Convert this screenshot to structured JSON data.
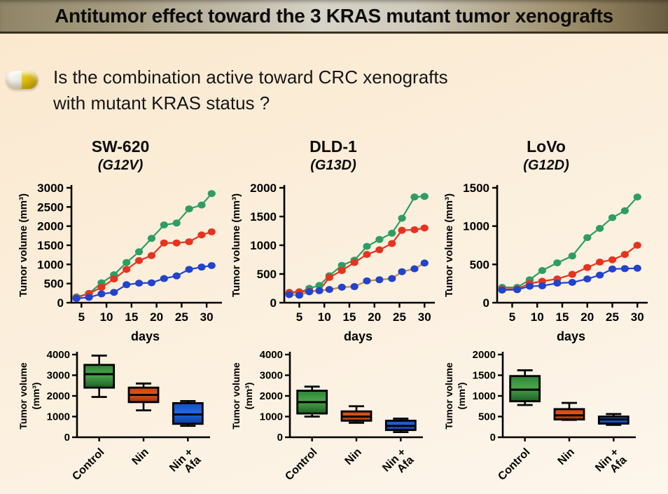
{
  "title": "Antitumor effect toward the 3 KRAS mutant tumor xenografts",
  "question": {
    "line1": "Is the combination active toward CRC xenografts",
    "line2": "with mutant KRAS status ?"
  },
  "headers": [
    {
      "cell_line": "SW-620",
      "mutation": "(G12V)"
    },
    {
      "cell_line": "DLD-1",
      "mutation": "(G13D)"
    },
    {
      "cell_line": "LoVo",
      "mutation": "(G12D)"
    }
  ],
  "colors": {
    "line_control": "#2e9d64",
    "line_nin": "#e63320",
    "line_nin_afa": "#2143cd",
    "line_nin_afa_connector_dld1": "#c98836",
    "box_green": [
      "#2e8436",
      "#4aa54b",
      "#1d6124"
    ],
    "box_orange": [
      "#c2440e",
      "#e0561c",
      "#96330a"
    ],
    "box_blue": [
      "#1150c4",
      "#2268e0",
      "#0a3c9e"
    ]
  },
  "chart_data": [
    {
      "type": "line",
      "cell_line": "SW-620",
      "ylabel": "Tumor volume (mm³)",
      "xlabel": "days",
      "xlim": [
        3,
        32.5
      ],
      "ylim": [
        0,
        3000
      ],
      "yticks": [
        0,
        500,
        1000,
        1500,
        2000,
        2500,
        3000
      ],
      "xticks": [
        5,
        10,
        15,
        20,
        25,
        30
      ],
      "x": [
        4,
        6.5,
        9,
        11.5,
        14,
        16.5,
        19,
        21.5,
        24,
        26.5,
        29,
        31
      ],
      "series": [
        {
          "name": "Control",
          "color": "#2e9d64",
          "line_color": "#2e9d64",
          "values": [
            150,
            240,
            520,
            730,
            1050,
            1330,
            1680,
            2030,
            2080,
            2450,
            2550,
            2850
          ]
        },
        {
          "name": "Nin",
          "color": "#e63320",
          "line_color": "#e63320",
          "values": [
            130,
            240,
            400,
            620,
            870,
            1100,
            1230,
            1560,
            1560,
            1590,
            1770,
            1850
          ]
        },
        {
          "name": "Nin + Afa",
          "color": "#2143cd",
          "line_color": "#2143cd",
          "values": [
            110,
            140,
            230,
            270,
            470,
            510,
            520,
            630,
            700,
            870,
            930,
            970
          ]
        }
      ]
    },
    {
      "type": "line",
      "cell_line": "DLD-1",
      "ylabel": "Tumor volume (mm³)",
      "xlabel": "days",
      "xlim": [
        2,
        31.5
      ],
      "ylim": [
        0,
        2000
      ],
      "yticks": [
        0,
        500,
        1000,
        1500,
        2000
      ],
      "xticks": [
        5,
        10,
        15,
        20,
        25,
        30
      ],
      "x": [
        3,
        5,
        7,
        9,
        11,
        13.5,
        16,
        18.5,
        21,
        23.5,
        25.5,
        28,
        30
      ],
      "series": [
        {
          "name": "Control",
          "color": "#2e9d64",
          "line_color": "#2e9d64",
          "values": [
            170,
            180,
            250,
            300,
            470,
            650,
            740,
            980,
            1100,
            1210,
            1470,
            1840,
            1850
          ]
        },
        {
          "name": "Nin",
          "color": "#e63320",
          "line_color": "#e63320",
          "values": [
            180,
            190,
            200,
            210,
            440,
            560,
            700,
            840,
            920,
            1030,
            1260,
            1270,
            1300
          ]
        },
        {
          "name": "Nin + Afa",
          "color": "#2143cd",
          "line_color": "#c98836",
          "values": [
            140,
            130,
            190,
            210,
            230,
            270,
            280,
            380,
            400,
            420,
            540,
            590,
            690
          ]
        }
      ]
    },
    {
      "type": "line",
      "cell_line": "LoVo",
      "ylabel": "Tumor volume (mm³)",
      "xlabel": "days",
      "xlim": [
        2,
        31.5
      ],
      "ylim": [
        0,
        1500
      ],
      "yticks": [
        0,
        500,
        1000,
        1500
      ],
      "xticks": [
        5,
        10,
        15,
        20,
        25,
        30
      ],
      "x": [
        3,
        6,
        8.5,
        11,
        14,
        17,
        20,
        22.5,
        25,
        27.5,
        30
      ],
      "series": [
        {
          "name": "Control",
          "color": "#2e9d64",
          "line_color": "#2e9d64",
          "values": [
            200,
            200,
            300,
            420,
            520,
            610,
            850,
            970,
            1110,
            1200,
            1380
          ]
        },
        {
          "name": "Nin",
          "color": "#e63320",
          "line_color": "#e63320",
          "values": [
            175,
            180,
            250,
            280,
            310,
            370,
            460,
            530,
            560,
            630,
            750
          ]
        },
        {
          "name": "Nin + Afa",
          "color": "#2143cd",
          "line_color": "#2143cd",
          "values": [
            165,
            170,
            215,
            220,
            255,
            265,
            310,
            360,
            440,
            445,
            450
          ]
        }
      ]
    },
    {
      "type": "box",
      "cell_line": "SW-620",
      "ylabel_lines": [
        "Tumor volume",
        "(mm³)"
      ],
      "ylim": [
        0,
        4000
      ],
      "yticks": [
        0,
        1000,
        2000,
        3000,
        4000
      ],
      "boxes": [
        {
          "label": [
            "Control"
          ],
          "color_id": "box_green",
          "whisker_low": 1950,
          "q1": 2400,
          "median": 3050,
          "q3": 3500,
          "whisker_high": 3950
        },
        {
          "label": [
            "Nin"
          ],
          "color_id": "box_orange",
          "whisker_low": 1300,
          "q1": 1700,
          "median": 2050,
          "q3": 2400,
          "whisker_high": 2600
        },
        {
          "label": [
            "Nin +",
            "Afa"
          ],
          "color_id": "box_blue",
          "whisker_low": 550,
          "q1": 650,
          "median": 1100,
          "q3": 1650,
          "whisker_high": 1750
        }
      ]
    },
    {
      "type": "box",
      "cell_line": "DLD-1",
      "ylabel_lines": [
        "Tumor volume",
        "(mm³)"
      ],
      "ylim": [
        0,
        4000
      ],
      "yticks": [
        0,
        1000,
        2000,
        3000,
        4000
      ],
      "boxes": [
        {
          "label": [
            "Control"
          ],
          "color_id": "box_green",
          "whisker_low": 1000,
          "q1": 1150,
          "median": 1700,
          "q3": 2250,
          "whisker_high": 2450
        },
        {
          "label": [
            "Nin"
          ],
          "color_id": "box_orange",
          "whisker_low": 700,
          "q1": 800,
          "median": 1000,
          "q3": 1250,
          "whisker_high": 1500
        },
        {
          "label": [
            "Nin +",
            "Afa"
          ],
          "color_id": "box_blue",
          "whisker_low": 250,
          "q1": 350,
          "median": 550,
          "q3": 800,
          "whisker_high": 900
        }
      ]
    },
    {
      "type": "box",
      "cell_line": "LoVo",
      "ylabel_lines": [
        "Tumor volume",
        "(mm³)"
      ],
      "ylim": [
        0,
        2000
      ],
      "yticks": [
        0,
        500,
        1000,
        1500,
        2000
      ],
      "boxes": [
        {
          "label": [
            "Control"
          ],
          "color_id": "box_green",
          "whisker_low": 780,
          "q1": 870,
          "median": 1150,
          "q3": 1480,
          "whisker_high": 1620
        },
        {
          "label": [
            "Nin"
          ],
          "color_id": "box_orange",
          "whisker_low": 420,
          "q1": 430,
          "median": 530,
          "q3": 680,
          "whisker_high": 830
        },
        {
          "label": [
            "Nin +",
            "Afa"
          ],
          "color_id": "box_blue",
          "whisker_low": 300,
          "q1": 330,
          "median": 430,
          "q3": 500,
          "whisker_high": 560
        }
      ]
    }
  ]
}
